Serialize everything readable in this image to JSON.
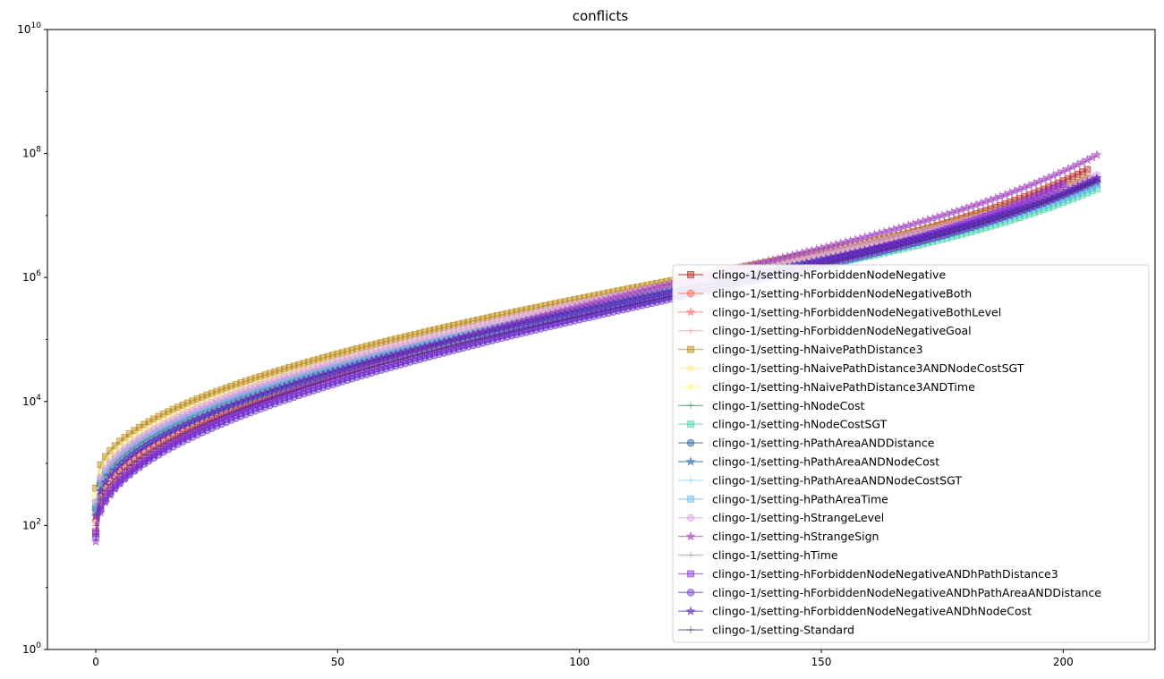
{
  "chart_data": {
    "type": "line",
    "title": "conflicts",
    "xlabel": "",
    "ylabel": "",
    "xlim": [
      -10,
      219
    ],
    "ylim": [
      1,
      10000000000
    ],
    "yscale": "log",
    "grid": false,
    "legend_position": "lower right",
    "x_ticks": [
      "0",
      "50",
      "100",
      "150",
      "200"
    ],
    "y_ticks": [
      {
        "base": "10",
        "exp": "0"
      },
      {
        "base": "10",
        "exp": "2"
      },
      {
        "base": "10",
        "exp": "4"
      },
      {
        "base": "10",
        "exp": "6"
      },
      {
        "base": "10",
        "exp": "8"
      },
      {
        "base": "10",
        "exp": "10"
      }
    ],
    "series": [
      {
        "name": "clingo-1/setting-hForbiddenNodeNegative",
        "color": "#b22222",
        "marker": "square",
        "n": 206,
        "start": 80,
        "end": 55000000
      },
      {
        "name": "clingo-1/setting-hForbiddenNodeNegativeBoth",
        "color": "#ff6347",
        "marker": "circle",
        "n": 206,
        "start": 120,
        "end": 40000000
      },
      {
        "name": "clingo-1/setting-hForbiddenNodeNegativeBothLevel",
        "color": "#ff6a6a",
        "marker": "star",
        "n": 206,
        "start": 150,
        "end": 38000000
      },
      {
        "name": "clingo-1/setting-hForbiddenNodeNegativeGoal",
        "color": "#ff9aa2",
        "marker": "plus",
        "n": 206,
        "start": 90,
        "end": 36000000
      },
      {
        "name": "clingo-1/setting-hNaivePathDistance3",
        "color": "#b8860b",
        "marker": "square",
        "n": 206,
        "start": 400,
        "end": 40000000
      },
      {
        "name": "clingo-1/setting-hNaivePathDistance3ANDNodeCostSGT",
        "color": "#ffec8b",
        "marker": "circle",
        "n": 206,
        "start": 300,
        "end": 33000000
      },
      {
        "name": "clingo-1/setting-hNaivePathDistance3ANDTime",
        "color": "#fff68f",
        "marker": "star",
        "n": 206,
        "start": 250,
        "end": 32000000
      },
      {
        "name": "clingo-1/setting-hNodeCost",
        "color": "#2e8b57",
        "marker": "plus",
        "n": 206,
        "start": 200,
        "end": 30000000
      },
      {
        "name": "clingo-1/setting-hNodeCostSGT",
        "color": "#3cd3a8",
        "marker": "square",
        "n": 208,
        "start": 180,
        "end": 27000000
      },
      {
        "name": "clingo-1/setting-hPathAreaANDDistance",
        "color": "#1f5f99",
        "marker": "circle",
        "n": 208,
        "start": 200,
        "end": 35000000
      },
      {
        "name": "clingo-1/setting-hPathAreaANDNodeCost",
        "color": "#2a6ab0",
        "marker": "star",
        "n": 208,
        "start": 170,
        "end": 33000000
      },
      {
        "name": "clingo-1/setting-hPathAreaANDNodeCostSGT",
        "color": "#87cefa",
        "marker": "plus",
        "n": 208,
        "start": 160,
        "end": 30000000
      },
      {
        "name": "clingo-1/setting-hPathAreaTime",
        "color": "#6cb4ee",
        "marker": "square",
        "n": 208,
        "start": 230,
        "end": 32000000
      },
      {
        "name": "clingo-1/setting-hStrangeLevel",
        "color": "#d8a0e8",
        "marker": "circle",
        "n": 208,
        "start": 240,
        "end": 45000000
      },
      {
        "name": "clingo-1/setting-hStrangeSign",
        "color": "#a040c0",
        "marker": "star",
        "n": 208,
        "start": 55,
        "end": 95000000
      },
      {
        "name": "clingo-1/setting-hTime",
        "color": "#a0a0a0",
        "marker": "plus",
        "n": 208,
        "start": 180,
        "end": 34000000
      },
      {
        "name": "clingo-1/setting-hForbiddenNodeNegativeANDhPathDistance3",
        "color": "#8a2be2",
        "marker": "square",
        "n": 201,
        "start": 75,
        "end": 32000000
      },
      {
        "name": "clingo-1/setting-hForbiddenNodeNegativeANDhPathAreaANDDistance",
        "color": "#6a30c8",
        "marker": "circle",
        "n": 208,
        "start": 65,
        "end": 38000000
      },
      {
        "name": "clingo-1/setting-hForbiddenNodeNegativeANDhNodeCost",
        "color": "#5a1fb8",
        "marker": "star",
        "n": 208,
        "start": 140,
        "end": 40000000
      },
      {
        "name": "clingo-1/setting-Standard",
        "color": "#4b2a80",
        "marker": "plus",
        "n": 208,
        "start": 100,
        "end": 36000000
      }
    ]
  }
}
